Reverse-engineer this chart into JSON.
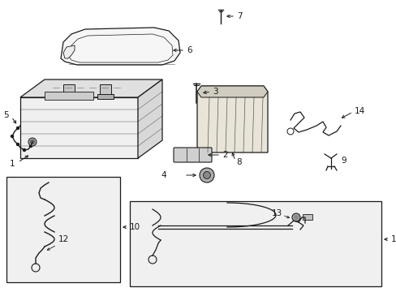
{
  "background_color": "#ffffff",
  "line_color": "#1a1a1a",
  "gray_fill": "#e8e8e8",
  "light_fill": "#f4f4f4",
  "box_fill": "#eeeeee",
  "figsize": [
    4.89,
    3.6
  ],
  "dpi": 100
}
